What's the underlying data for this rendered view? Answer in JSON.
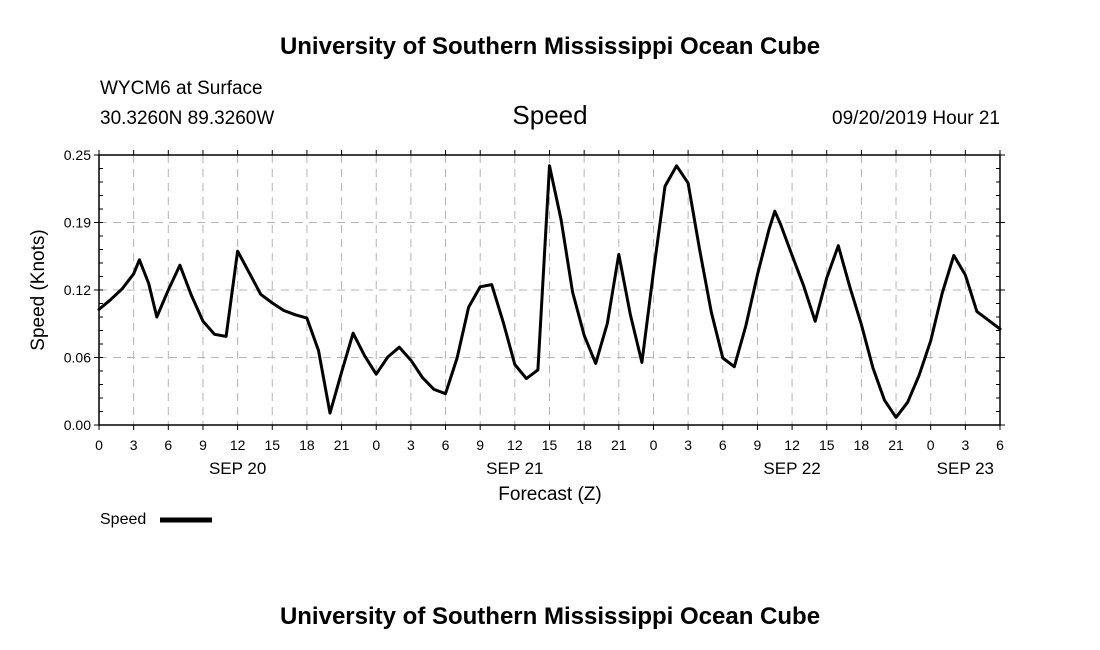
{
  "header": {
    "title": "University of Southern Mississippi Ocean Cube",
    "station": "WYCM6 at Surface",
    "coordinates": "30.3260N 89.3260W",
    "variable": "Speed",
    "date": "09/20/2019 Hour 21"
  },
  "footer": {
    "title": "University of Southern Mississippi Ocean Cube"
  },
  "chart_data": {
    "type": "line",
    "title": "Speed",
    "xlabel": "Forecast (Z)",
    "ylabel": "Speed (Knots)",
    "ylim": [
      0,
      0.25
    ],
    "yticks": [
      "0.00",
      "0.06",
      "0.12",
      "0.19",
      "0.25"
    ],
    "xlim": [
      0,
      78
    ],
    "xtick_labels": [
      "0",
      "3",
      "6",
      "9",
      "12",
      "15",
      "18",
      "21",
      "0",
      "3",
      "6",
      "9",
      "12",
      "15",
      "18",
      "21",
      "0",
      "3",
      "6",
      "9",
      "12",
      "15",
      "18",
      "21",
      "0",
      "3",
      "6"
    ],
    "date_labels": [
      {
        "label": "SEP 20",
        "hour": 12
      },
      {
        "label": "SEP 21",
        "hour": 36
      },
      {
        "label": "SEP 22",
        "hour": 60
      },
      {
        "label": "SEP 23",
        "hour": 75
      }
    ],
    "grid": true,
    "legend": "bottom-left",
    "series": [
      {
        "name": "Speed",
        "color": "#000000",
        "x": [
          0,
          1,
          2,
          3,
          3.5,
          4.3,
          5,
          6,
          7,
          8,
          9,
          10,
          11,
          12,
          13,
          14,
          15,
          16,
          17,
          18,
          19,
          20,
          21,
          22,
          23,
          24,
          25,
          26,
          27,
          28,
          29,
          30,
          31,
          32,
          33,
          34,
          35,
          36,
          37,
          38,
          39,
          40,
          41,
          42,
          43,
          44,
          45,
          46,
          47,
          48,
          49,
          50,
          51,
          52,
          53,
          54,
          55,
          56,
          57,
          58,
          58.5,
          59,
          60,
          61,
          62,
          63,
          64,
          65,
          66,
          67,
          68,
          69,
          70,
          71,
          72,
          73,
          74,
          75,
          76,
          77,
          78
        ],
        "y": [
          0.107,
          0.116,
          0.126,
          0.14,
          0.153,
          0.131,
          0.1,
          0.125,
          0.148,
          0.12,
          0.096,
          0.084,
          0.082,
          0.161,
          0.141,
          0.121,
          0.113,
          0.106,
          0.102,
          0.099,
          0.069,
          0.011,
          0.049,
          0.085,
          0.064,
          0.047,
          0.063,
          0.072,
          0.06,
          0.044,
          0.033,
          0.029,
          0.062,
          0.109,
          0.128,
          0.13,
          0.095,
          0.056,
          0.043,
          0.051,
          0.24,
          0.19,
          0.123,
          0.083,
          0.057,
          0.094,
          0.158,
          0.102,
          0.058,
          0.142,
          0.221,
          0.24,
          0.224,
          0.162,
          0.105,
          0.062,
          0.054,
          0.092,
          0.139,
          0.181,
          0.198,
          0.186,
          0.157,
          0.129,
          0.096,
          0.136,
          0.166,
          0.128,
          0.093,
          0.053,
          0.023,
          0.007,
          0.021,
          0.046,
          0.078,
          0.122,
          0.157,
          0.139,
          0.105,
          0.097,
          0.089
        ]
      }
    ]
  }
}
